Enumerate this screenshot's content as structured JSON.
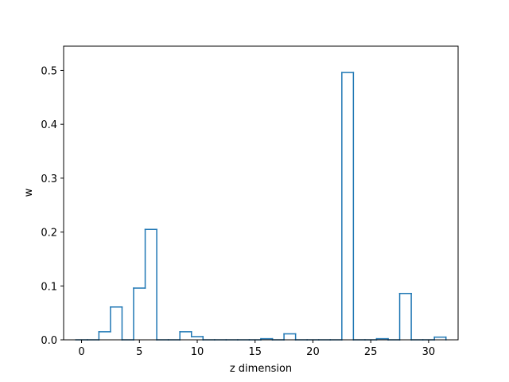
{
  "chart_data": {
    "type": "bar",
    "style": "step",
    "title": "",
    "xlabel": "z dimension",
    "ylabel": "w",
    "xlim": [
      -1.55,
      32.55
    ],
    "ylim": [
      0,
      0.545
    ],
    "x_ticks": [
      0,
      5,
      10,
      15,
      20,
      25,
      30
    ],
    "y_ticks": [
      0.0,
      0.1,
      0.2,
      0.3,
      0.4,
      0.5
    ],
    "x_tick_labels": [
      "0",
      "5",
      "10",
      "15",
      "20",
      "25",
      "30"
    ],
    "y_tick_labels": [
      "0.0",
      "0.1",
      "0.2",
      "0.3",
      "0.4",
      "0.5"
    ],
    "grid": false,
    "legend": "none",
    "categories": [
      0,
      1,
      2,
      3,
      4,
      5,
      6,
      7,
      8,
      9,
      10,
      11,
      12,
      13,
      14,
      15,
      16,
      17,
      18,
      19,
      20,
      21,
      22,
      23,
      24,
      25,
      26,
      27,
      28,
      29,
      30,
      31
    ],
    "values": [
      0.0,
      0.0,
      0.015,
      0.061,
      0.0,
      0.096,
      0.205,
      0.0,
      0.0,
      0.015,
      0.006,
      0.0,
      0.0,
      0.0,
      0.0,
      0.0,
      0.002,
      0.0,
      0.011,
      0.0,
      0.0,
      0.0,
      0.0,
      0.496,
      0.0,
      0.0,
      0.002,
      0.0,
      0.086,
      0.0,
      0.0,
      0.005
    ],
    "colors": {
      "series": "#1f77b4",
      "axes": "#000000",
      "background": "#ffffff"
    }
  }
}
